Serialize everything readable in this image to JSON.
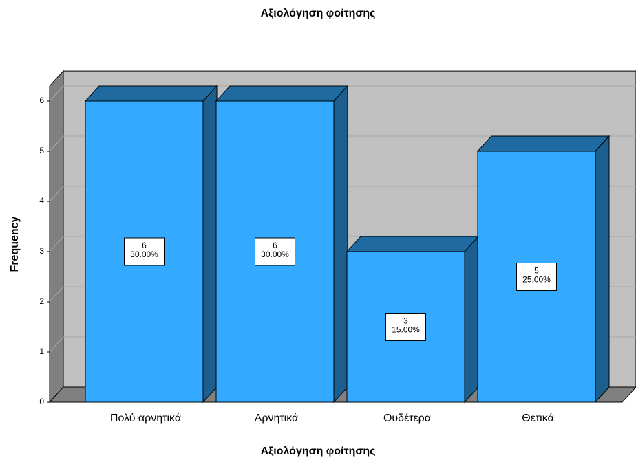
{
  "chart_data": {
    "type": "bar3d",
    "title": "Αξιολόγηση φοίτησης",
    "categories": [
      "Πολύ αρνητικά",
      "Αρνητικά",
      "Ουδέτερα",
      "Θετικά"
    ],
    "values": [
      6,
      6,
      3,
      5
    ],
    "percent_labels": [
      "30.00%",
      "30.00%",
      "15.00%",
      "25.00%"
    ],
    "color": "#33aaff",
    "x_label": "Αξιολόγηση φοίτησης",
    "y_label": "Frequency",
    "ylim": [
      0,
      6.3
    ],
    "yticks": [
      0,
      1,
      2,
      3,
      4,
      5,
      6
    ],
    "grid": true
  }
}
